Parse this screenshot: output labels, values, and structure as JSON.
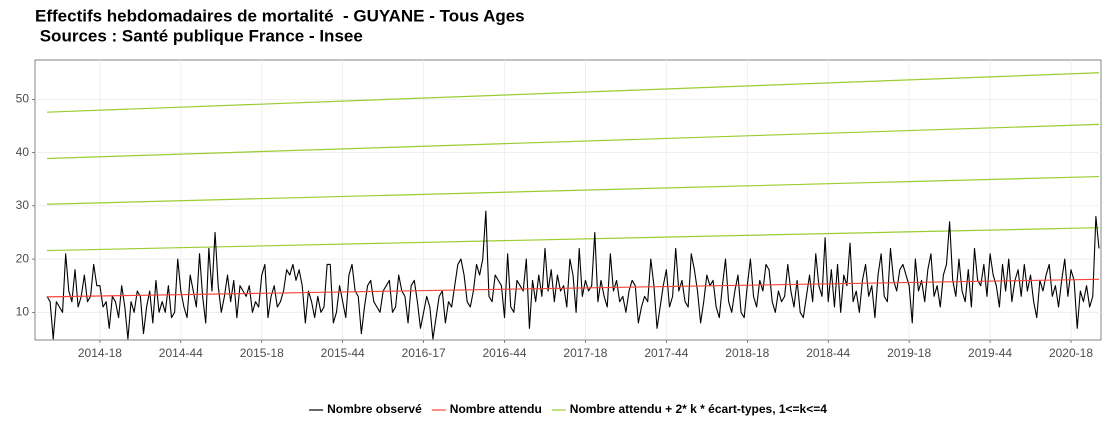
{
  "chart_data": {
    "type": "line",
    "title": "Effectifs hebdomadaires de mortalité  - GUYANE - Tous Ages",
    "subtitle": " Sources : Santé publique France - Insee",
    "categories": [
      null,
      null,
      null,
      null,
      null,
      null,
      null,
      null,
      null,
      null,
      null,
      null,
      null,
      null,
      null,
      null,
      null,
      "2014-18",
      null,
      null,
      null,
      null,
      null,
      null,
      null,
      null,
      null,
      null,
      null,
      null,
      null,
      null,
      null,
      null,
      null,
      null,
      null,
      null,
      null,
      null,
      null,
      null,
      null,
      "2014-44",
      null,
      null,
      null,
      null,
      null,
      null,
      null,
      null,
      null,
      null,
      null,
      null,
      null,
      null,
      null,
      null,
      null,
      null,
      null,
      null,
      null,
      null,
      null,
      null,
      null,
      "2015-18",
      null,
      null,
      null,
      null,
      null,
      null,
      null,
      null,
      null,
      null,
      null,
      null,
      null,
      null,
      null,
      null,
      null,
      null,
      null,
      null,
      null,
      null,
      null,
      null,
      null,
      "2015-44",
      null,
      null,
      null,
      null,
      null,
      null,
      null,
      null,
      null,
      null,
      null,
      null,
      null,
      null,
      null,
      null,
      null,
      null,
      null,
      null,
      null,
      null,
      null,
      null,
      null,
      "2016-17",
      null,
      null,
      null,
      null,
      null,
      null,
      null,
      null,
      null,
      null,
      null,
      null,
      null,
      null,
      null,
      null,
      null,
      null,
      null,
      null,
      null,
      null,
      null,
      null,
      null,
      "2016-44",
      null,
      null,
      null,
      null,
      null,
      null,
      null,
      null,
      null,
      null,
      null,
      null,
      null,
      null,
      null,
      null,
      null,
      null,
      null,
      null,
      null,
      null,
      null,
      null,
      null,
      "2017-18",
      null,
      null,
      null,
      null,
      null,
      null,
      null,
      null,
      null,
      null,
      null,
      null,
      null,
      null,
      null,
      null,
      null,
      null,
      null,
      null,
      null,
      null,
      null,
      null,
      null,
      "2017-44",
      null,
      null,
      null,
      null,
      null,
      null,
      null,
      null,
      null,
      null,
      null,
      null,
      null,
      null,
      null,
      null,
      null,
      null,
      null,
      null,
      null,
      null,
      null,
      null,
      null,
      "2018-18",
      null,
      null,
      null,
      null,
      null,
      null,
      null,
      null,
      null,
      null,
      null,
      null,
      null,
      null,
      null,
      null,
      null,
      null,
      null,
      null,
      null,
      null,
      null,
      null,
      null,
      "2018-44",
      null,
      null,
      null,
      null,
      null,
      null,
      null,
      null,
      null,
      null,
      null,
      null,
      null,
      null,
      null,
      null,
      null,
      null,
      null,
      null,
      null,
      null,
      null,
      null,
      null,
      "2019-18",
      null,
      null,
      null,
      null,
      null,
      null,
      null,
      null,
      null,
      null,
      null,
      null,
      null,
      null,
      null,
      null,
      null,
      null,
      null,
      null,
      null,
      null,
      null,
      null,
      null,
      "2019-44",
      null,
      null,
      null,
      null,
      null,
      null,
      null,
      null,
      null,
      null,
      null,
      null,
      null,
      null,
      null,
      null,
      null,
      null,
      null,
      null,
      null,
      null,
      null,
      null,
      null,
      "2020-18",
      null,
      null,
      null,
      null,
      null,
      null,
      null,
      null,
      null
    ],
    "series": [
      {
        "name": "Nombre observé",
        "color": "#000000",
        "values": [
          13,
          12,
          5,
          12,
          11,
          10,
          21,
          14,
          12,
          18,
          11,
          13,
          17,
          12,
          13,
          19,
          15,
          15,
          11,
          12,
          7,
          13,
          12,
          9,
          15,
          11,
          5,
          12,
          10,
          14,
          13,
          6,
          11,
          14,
          8,
          16,
          10,
          12,
          10,
          15,
          9,
          10,
          20,
          14,
          11,
          9,
          17,
          14,
          11,
          21,
          13,
          8,
          22,
          14,
          25,
          15,
          10,
          13,
          17,
          12,
          16,
          9,
          15,
          14,
          13,
          15,
          10,
          12,
          11,
          17,
          19,
          9,
          13,
          15,
          11,
          12,
          14,
          18,
          17,
          19,
          16,
          18,
          15,
          8,
          14,
          12,
          9,
          13,
          10,
          11,
          19,
          19,
          8,
          10,
          15,
          12,
          9,
          17,
          19,
          14,
          13,
          6,
          11,
          15,
          16,
          12,
          11,
          10,
          14,
          15,
          16,
          10,
          11,
          17,
          14,
          13,
          8,
          15,
          16,
          12,
          7,
          10,
          13,
          11,
          5,
          9,
          13,
          14,
          8,
          12,
          11,
          15,
          19,
          20,
          17,
          12,
          11,
          14,
          19,
          17,
          20,
          29,
          13,
          12,
          17,
          16,
          15,
          9,
          21,
          11,
          10,
          16,
          15,
          14,
          20,
          7,
          16,
          12,
          17,
          13,
          22,
          14,
          18,
          12,
          17,
          14,
          15,
          11,
          20,
          17,
          10,
          22,
          13,
          16,
          14,
          15,
          25,
          12,
          16,
          13,
          11,
          21,
          14,
          16,
          12,
          13,
          10,
          14,
          16,
          15,
          8,
          11,
          13,
          12,
          20,
          15,
          7,
          11,
          15,
          18,
          11,
          13,
          22,
          14,
          16,
          12,
          11,
          21,
          18,
          14,
          8,
          12,
          17,
          15,
          16,
          11,
          9,
          15,
          20,
          12,
          10,
          14,
          17,
          10,
          9,
          15,
          20,
          13,
          11,
          16,
          14,
          19,
          18,
          12,
          10,
          14,
          12,
          13,
          19,
          14,
          11,
          16,
          10,
          9,
          13,
          17,
          12,
          21,
          15,
          13,
          24,
          12,
          18,
          11,
          19,
          10,
          17,
          15,
          23,
          12,
          14,
          10,
          16,
          19,
          13,
          15,
          9,
          17,
          21,
          13,
          12,
          22,
          16,
          14,
          18,
          19,
          17,
          15,
          8,
          20,
          14,
          16,
          12,
          18,
          21,
          13,
          15,
          11,
          17,
          19,
          27,
          16,
          13,
          20,
          14,
          12,
          18,
          11,
          22,
          16,
          15,
          19,
          13,
          21,
          17,
          15,
          11,
          19,
          14,
          20,
          12,
          16,
          18,
          13,
          19,
          14,
          17,
          12,
          9,
          16,
          14,
          17,
          19,
          13,
          15,
          11,
          16,
          20,
          13,
          18,
          16,
          7,
          14,
          12,
          15,
          11,
          13,
          28,
          22
        ]
      }
    ],
    "expected": {
      "name": "Nombre attendu",
      "color": "#f8433a",
      "start": 12.9,
      "end": 16.2
    },
    "thresholds": {
      "name": "Nombre attendu + 2* k * écart-types, 1<=k<=4",
      "color": "#9acd32",
      "lines": [
        {
          "start": 21.6,
          "end": 25.9
        },
        {
          "start": 30.3,
          "end": 35.5
        },
        {
          "start": 38.9,
          "end": 45.3
        },
        {
          "start": 47.6,
          "end": 55.0
        }
      ]
    },
    "ylim": [
      4.8,
      57.4
    ],
    "yticks": [
      10,
      20,
      30,
      40,
      50
    ],
    "grid": true
  }
}
